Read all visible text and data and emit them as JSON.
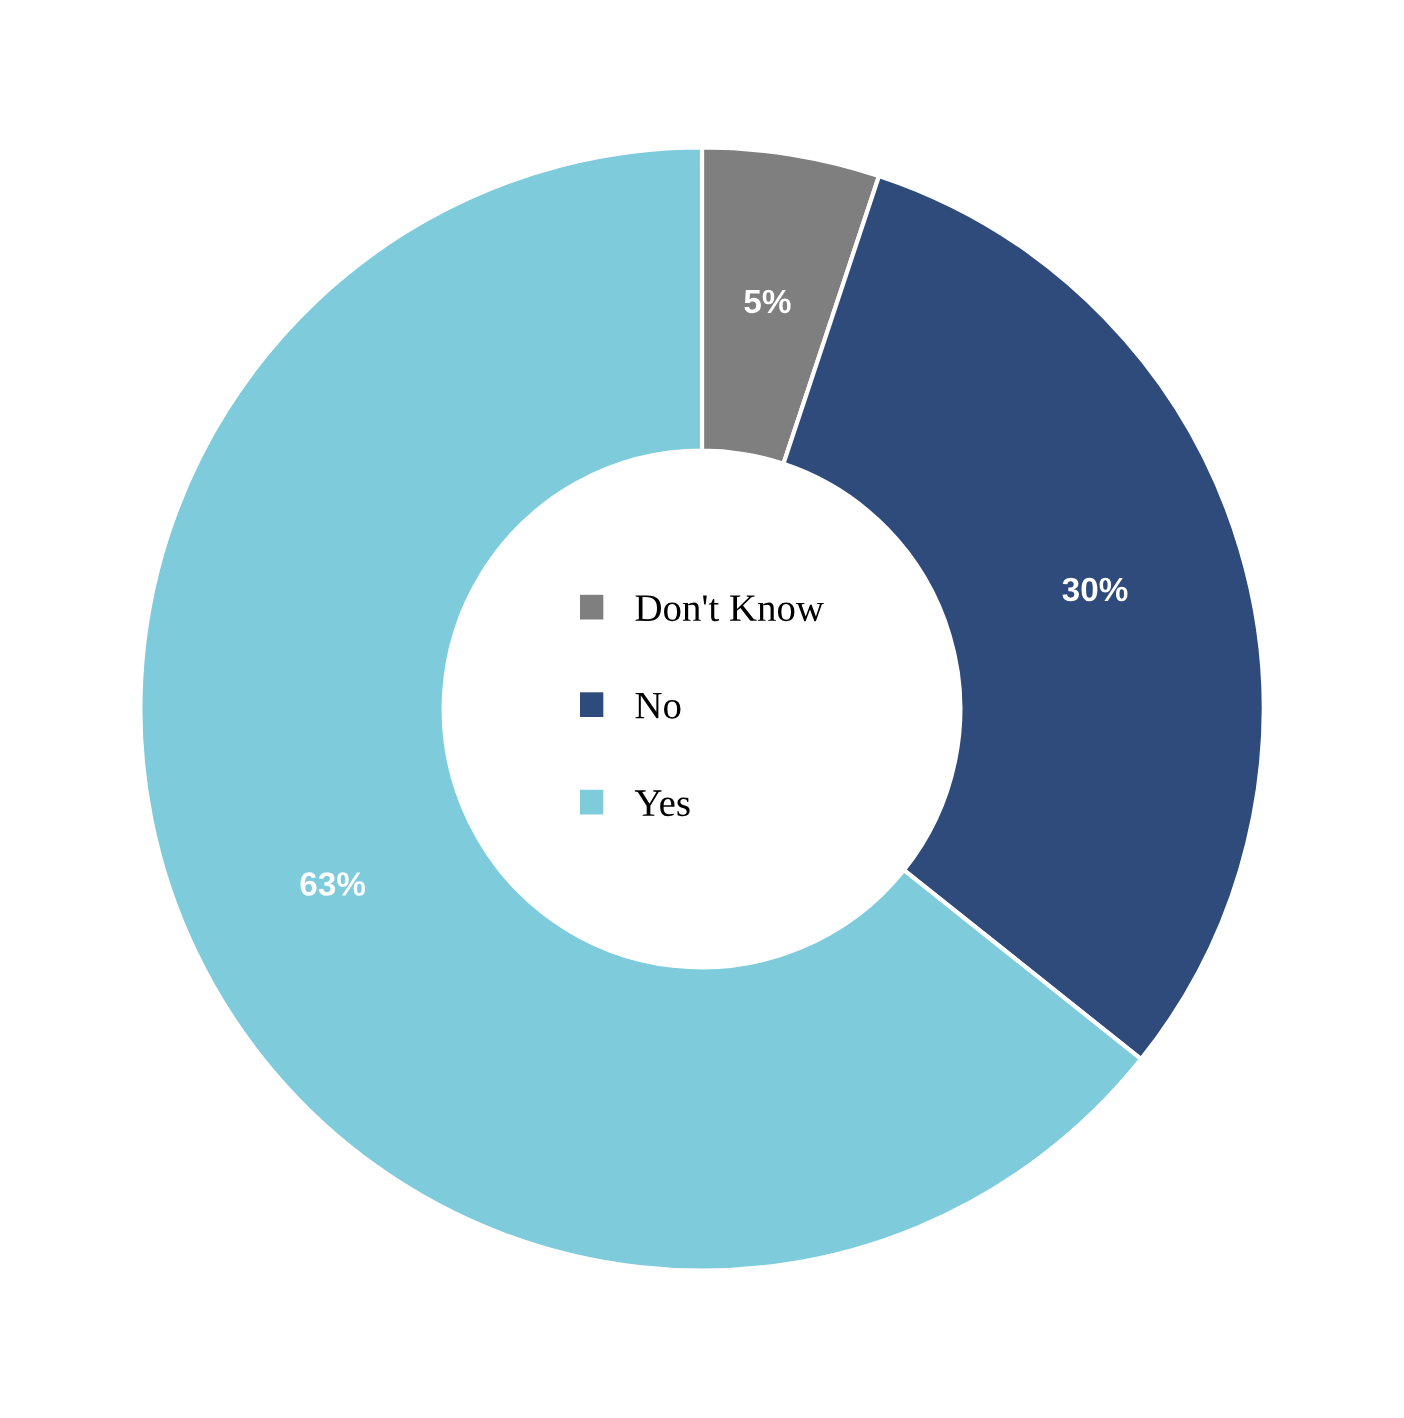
{
  "chart_data": {
    "type": "donut",
    "categories": [
      "Don't Know",
      "No",
      "Yes"
    ],
    "values": [
      5,
      30,
      63
    ],
    "colors": [
      "#7f7f7f",
      "#2f4b7c",
      "#7ecbdc"
    ],
    "value_labels": [
      "5%",
      "30%",
      "63%"
    ],
    "legend": "center"
  }
}
